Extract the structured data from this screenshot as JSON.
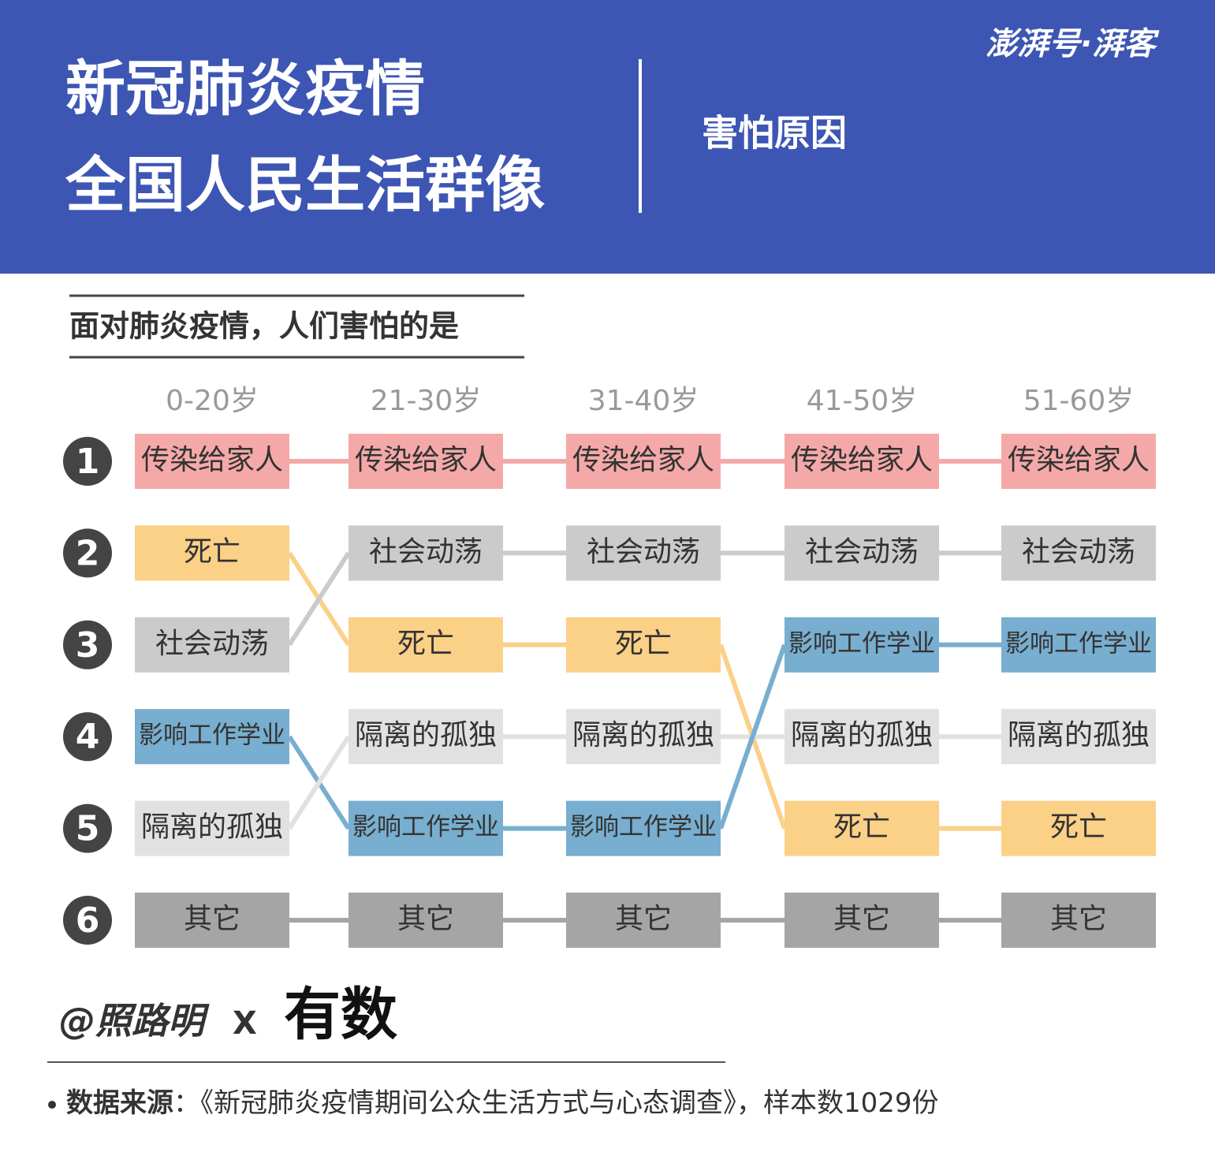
{
  "header": {
    "title_lines": [
      "新冠肺炎疫情",
      "全国人民生活群像"
    ],
    "subtitle": "害怕原因",
    "logo": "澎湃号·湃客"
  },
  "question": "面对肺炎疫情，人们害怕的是",
  "ranks": [
    1,
    2,
    3,
    4,
    5,
    6
  ],
  "columns": [
    {
      "group": "0-20岁",
      "items": [
        "传染给家人",
        "死亡",
        "社会动荡",
        "影响工作学业",
        "隔离的孤独",
        "其它"
      ]
    },
    {
      "group": "21-30岁",
      "items": [
        "传染给家人",
        "社会动荡",
        "死亡",
        "隔离的孤独",
        "影响工作学业",
        "其它"
      ]
    },
    {
      "group": "31-40岁",
      "items": [
        "传染给家人",
        "社会动荡",
        "死亡",
        "隔离的孤独",
        "影响工作学业",
        "其它"
      ]
    },
    {
      "group": "41-50岁",
      "items": [
        "传染给家人",
        "社会动荡",
        "影响工作学业",
        "隔离的孤独",
        "死亡",
        "其它"
      ]
    },
    {
      "group": "51-60岁",
      "items": [
        "传染给家人",
        "社会动荡",
        "影响工作学业",
        "隔离的孤独",
        "死亡",
        "其它"
      ]
    }
  ],
  "colors": {
    "传染给家人": "#f4a9a8",
    "死亡": "#fbd087",
    "社会动荡": "#cbcbcb",
    "影响工作学业": "#78aecf",
    "隔离的孤独": "#e1e1e1",
    "其它": "#a5a5a5"
  },
  "footer": {
    "credit": "@照路明",
    "cross": "X",
    "partner": "有数",
    "source_label": "数据来源",
    "source_text": "：《新冠肺炎疫情期间公众生活方式与心态调查》，样本数1029份"
  }
}
